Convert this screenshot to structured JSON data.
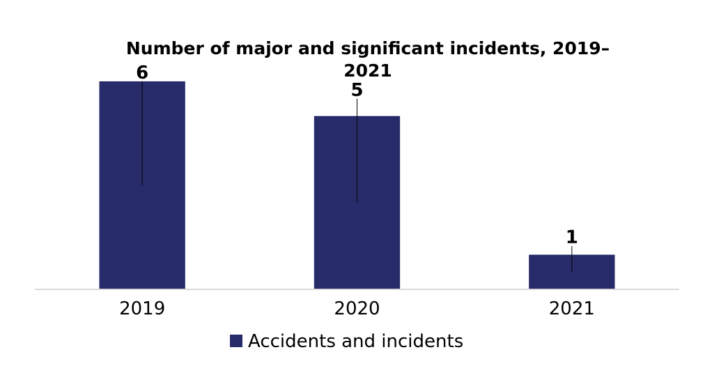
{
  "chart_data": {
    "type": "bar",
    "title_line1": "Number of major and significant incidents, 2019–",
    "title_line2": "2021",
    "categories": [
      "2019",
      "2020",
      "2021"
    ],
    "series": [
      {
        "name": "Accidents and incidents",
        "values": [
          6,
          5,
          1
        ],
        "color": "#282b69",
        "error_low": [
          3,
          2.5,
          0.5
        ],
        "error_high": [
          6,
          5.5,
          1.25
        ]
      }
    ],
    "ylim": [
      0,
      6.5
    ],
    "legend_position": "bottom",
    "grid": false,
    "axis_color": "#d9d9d9"
  }
}
